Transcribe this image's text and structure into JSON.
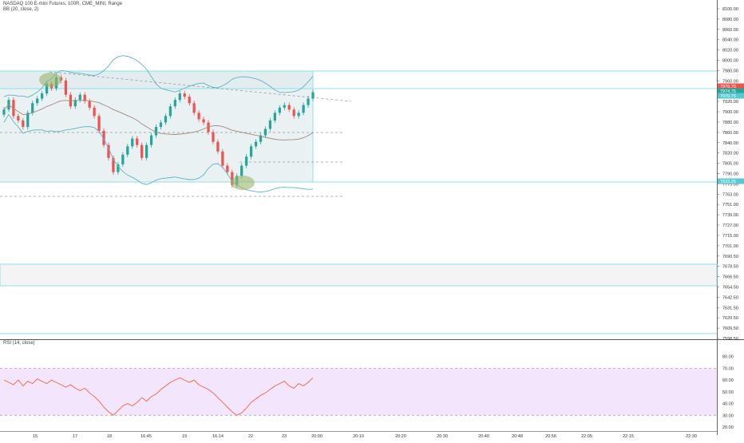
{
  "header": {
    "symbol_line": "NASDAQ 100 E-mini Futures, 100R, CME_MINI, Range",
    "bb_line": "BB (20, close, 2)",
    "rsi_line": "RSI (14, close)"
  },
  "colors": {
    "up": "#26a69a",
    "down": "#ef5350",
    "band": "#5ab4c4",
    "basis": "#a1887f",
    "rsi_line": "#f2643c",
    "rsi_fill": "#f3e5fb",
    "box_stroke": "#8fe0ea",
    "box_fill": "#eaf1f2",
    "ellipse": "#9bb56b",
    "price_label_red": "#ef5350",
    "price_label_green": "#26a69a",
    "price_label_teal": "#5ac8d2"
  },
  "chart_data": [
    {
      "type": "candlestick",
      "title": "NASDAQ 100 E-mini Futures, 100R, CME_MINI, Range",
      "ylim": [
        7590,
        8110
      ],
      "y_ticks": [
        "8100.00",
        "8080.00",
        "8060.00",
        "8040.00",
        "8020.00",
        "8000.00",
        "7980.00",
        "7960.00",
        "7940.00",
        "7920.00",
        "7900.00",
        "7880.00",
        "7860.00",
        "7840.00",
        "7820.00",
        "7805.00",
        "7790.00",
        "7775.00",
        "7763.00",
        "7751.00",
        "7739.00",
        "7727.00",
        "7715.00",
        "7701.00",
        "7690.50",
        "7678.50",
        "7666.50",
        "7654.50",
        "7642.50",
        "7631.50",
        "7620.50",
        "7609.50",
        "7598.50"
      ],
      "x_labels": [
        "15",
        "17",
        "18",
        "16:45",
        "19",
        "16:14",
        "22",
        "23",
        "20:00",
        "20:10",
        "20:20",
        "20:30",
        "20:40",
        "20:48",
        "20:56",
        "22:05",
        "22:15",
        "22:30"
      ],
      "price_labels": [
        {
          "text": "7978.75",
          "color": "red"
        },
        {
          "text": "7974.75",
          "color": "green"
        },
        {
          "text": "7970.75",
          "color": "teal"
        },
        {
          "text": "7833.25",
          "color": "teal"
        }
      ],
      "indicators": [
        "Bollinger Bands upper/basis/lower"
      ],
      "trend_line": "dashed resistance",
      "box_zones": "top 8000.00–7978.00, bottom 7833.25",
      "candles_close": [
        7945,
        7960,
        7935,
        7928,
        7918,
        7940,
        7955,
        7962,
        7970,
        7985,
        7978,
        7995,
        7990,
        7968,
        7950,
        7960,
        7968,
        7958,
        7948,
        7935,
        7912,
        7890,
        7870,
        7848,
        7860,
        7875,
        7888,
        7900,
        7890,
        7870,
        7890,
        7905,
        7918,
        7925,
        7935,
        7950,
        7960,
        7970,
        7965,
        7955,
        7940,
        7930,
        7925,
        7910,
        7895,
        7880,
        7858,
        7848,
        7828,
        7842,
        7858,
        7872,
        7888,
        7895,
        7905,
        7915,
        7928,
        7940,
        7948,
        7952,
        7945,
        7935,
        7940,
        7952,
        7962,
        7972
      ]
    },
    {
      "type": "line",
      "title": "RSI (14, close)",
      "ylim": [
        20,
        90
      ],
      "y_ticks": [
        "80.00",
        "70.00",
        "60.00",
        "50.00",
        "40.00",
        "30.00",
        "20.00"
      ],
      "bands": [
        30,
        70
      ],
      "values": [
        60,
        58,
        56,
        60,
        55,
        59,
        57,
        61,
        59,
        57,
        60,
        58,
        56,
        54,
        56,
        53,
        51,
        53,
        49,
        46,
        42,
        37,
        33,
        30,
        34,
        38,
        40,
        38,
        41,
        45,
        42,
        46,
        48,
        52,
        55,
        58,
        60,
        62,
        60,
        58,
        60,
        56,
        54,
        52,
        49,
        45,
        41,
        37,
        33,
        30,
        32,
        36,
        41,
        44,
        47,
        49,
        52,
        55,
        57,
        59,
        55,
        53,
        57,
        55,
        58,
        62
      ]
    }
  ]
}
